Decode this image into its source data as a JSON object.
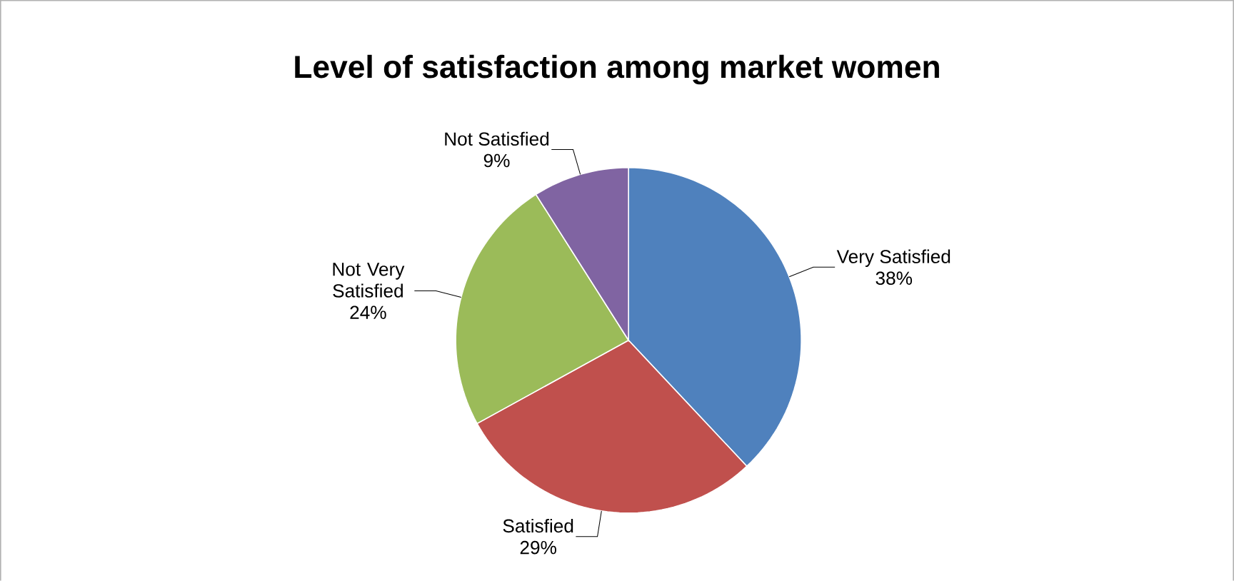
{
  "chart_data": {
    "type": "pie",
    "title": "Level of satisfaction  among market women",
    "categories": [
      "Very Satisfied",
      "Satisfied",
      "Not Very Satisfied",
      "Not Satisfied"
    ],
    "values": [
      38,
      29,
      24,
      9
    ],
    "colors": [
      "#4f81bd",
      "#c0504d",
      "#9bbb59",
      "#8064a2"
    ],
    "value_labels": [
      "38%",
      "29%",
      "24%",
      "9%"
    ]
  }
}
